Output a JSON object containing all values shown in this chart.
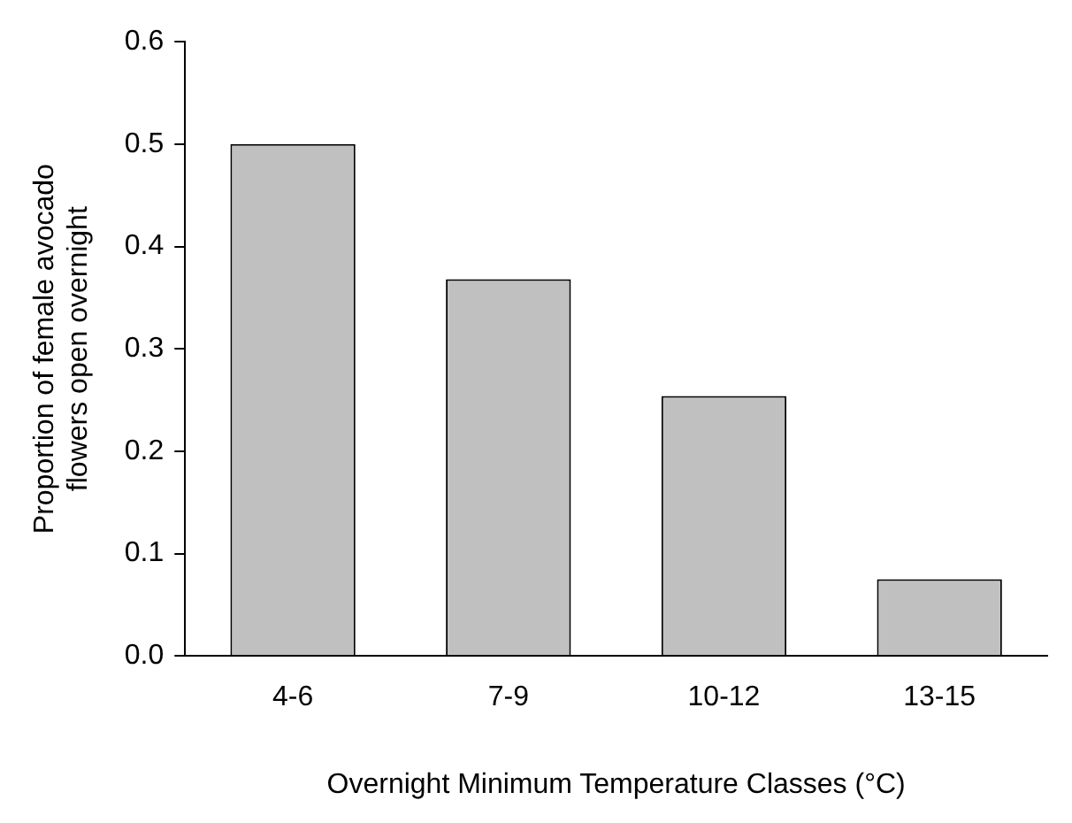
{
  "chart_data": {
    "type": "bar",
    "xlabel": "Overnight Minimum Temperature Classes (°C)",
    "ylabel": "Proportion of female avocado flowers open overnight",
    "categories": [
      "4-6",
      "7-9",
      "10-12",
      "13-15"
    ],
    "values": [
      0.5,
      0.368,
      0.254,
      0.075
    ],
    "color": "#c0c0c0",
    "ylim": [
      0,
      0.6
    ],
    "yticks": [
      {
        "value": 0,
        "label": "0.0"
      },
      0.1,
      0.2,
      0.3,
      0.4,
      0.5,
      0.6
    ],
    "grid": false,
    "legend": false
  }
}
